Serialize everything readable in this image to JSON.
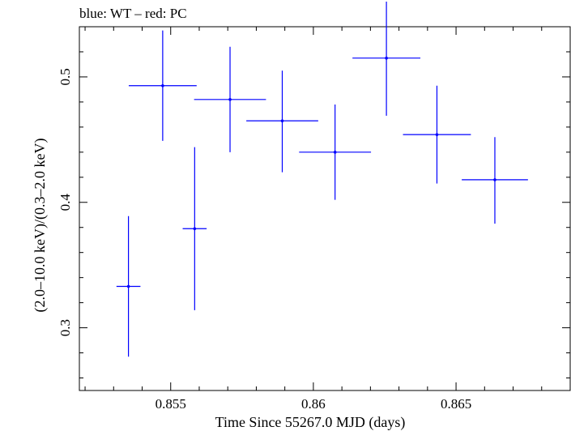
{
  "header": {
    "label": "blue: WT – red: PC"
  },
  "chart_data": {
    "type": "scatter",
    "title": "blue: WT – red: PC",
    "xlabel": "Time Since 55267.0 MJD (days)",
    "ylabel": "(2.0–10.0 keV)/(0.3–2.0 keV)",
    "xlim": [
      0.8518,
      0.869
    ],
    "ylim": [
      0.25,
      0.54
    ],
    "xticks": [
      0.855,
      0.86,
      0.865
    ],
    "xtick_labels": [
      "0.855",
      "0.86",
      "0.865"
    ],
    "yticks": [
      0.3,
      0.4,
      0.5
    ],
    "ytick_labels": [
      "0.3",
      "0.4",
      "0.5"
    ],
    "series": [
      {
        "color": "#0000ff",
        "points": [
          {
            "x": 0.85352,
            "y": 0.333,
            "xerr": 0.00042,
            "ylo": 0.277,
            "yhi": 0.389
          },
          {
            "x": 0.85472,
            "y": 0.493,
            "xerr": 0.00119,
            "ylo": 0.449,
            "yhi": 0.537
          },
          {
            "x": 0.85584,
            "y": 0.379,
            "xerr": 0.00042,
            "ylo": 0.314,
            "yhi": 0.444
          },
          {
            "x": 0.85708,
            "y": 0.482,
            "xerr": 0.00126,
            "ylo": 0.44,
            "yhi": 0.524
          },
          {
            "x": 0.85891,
            "y": 0.465,
            "xerr": 0.00126,
            "ylo": 0.424,
            "yhi": 0.505
          },
          {
            "x": 0.86076,
            "y": 0.44,
            "xerr": 0.00126,
            "ylo": 0.402,
            "yhi": 0.478
          },
          {
            "x": 0.86256,
            "y": 0.515,
            "xerr": 0.00119,
            "ylo": 0.469,
            "yhi": 0.56
          },
          {
            "x": 0.86433,
            "y": 0.454,
            "xerr": 0.00119,
            "ylo": 0.415,
            "yhi": 0.493
          },
          {
            "x": 0.86636,
            "y": 0.418,
            "xerr": 0.00116,
            "ylo": 0.383,
            "yhi": 0.452
          }
        ]
      }
    ]
  }
}
